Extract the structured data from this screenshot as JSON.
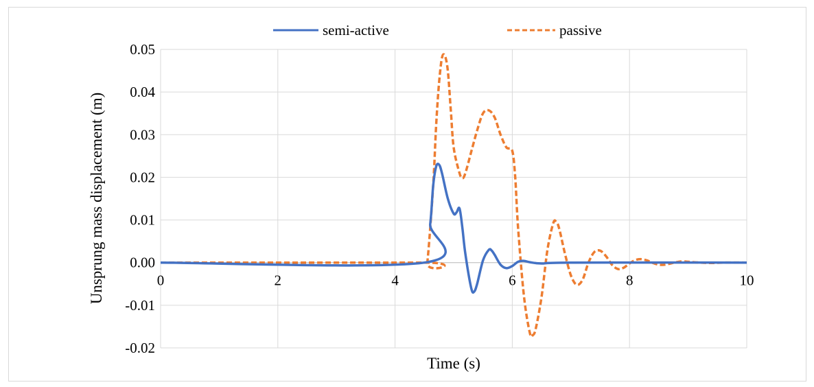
{
  "chart_data": {
    "type": "line",
    "title": "",
    "xlabel": "Time (s)",
    "ylabel": "Unsprung mass  displacement (m)",
    "xlim": [
      0,
      10
    ],
    "ylim": [
      -0.02,
      0.05
    ],
    "x_ticks": [
      0,
      2,
      4,
      6,
      8,
      10
    ],
    "y_ticks": [
      "0.05",
      "0.04",
      "0.03",
      "0.02",
      "0.01",
      "0.00",
      "-0.01",
      "-0.02"
    ],
    "y_tick_values": [
      0.05,
      0.04,
      0.03,
      0.02,
      0.01,
      0.0,
      -0.01,
      -0.02
    ],
    "grid": true,
    "legend_position": "top-center",
    "series": [
      {
        "name": "semi-active",
        "color": "#4472C4",
        "style": "solid",
        "x": [
          0,
          4.5,
          4.6,
          4.65,
          4.7,
          4.75,
          4.8,
          4.9,
          5.0,
          5.05,
          5.1,
          5.15,
          5.2,
          5.3,
          5.35,
          5.4,
          5.5,
          5.6,
          5.65,
          5.7,
          5.8,
          5.9,
          6.0,
          6.1,
          6.2,
          6.3,
          6.5,
          7.0,
          10
        ],
        "y": [
          0,
          0,
          0.009,
          0.018,
          0.0225,
          0.023,
          0.021,
          0.015,
          0.0115,
          0.0118,
          0.0127,
          0.008,
          0.002,
          -0.006,
          -0.0068,
          -0.005,
          0.0005,
          0.003,
          0.0028,
          0.0018,
          -0.0005,
          -0.0013,
          -0.0008,
          0.0002,
          0.0004,
          0.0001,
          -0.0002,
          0,
          0
        ]
      },
      {
        "name": "passive",
        "color": "#ED7D31",
        "style": "dashed",
        "x": [
          0,
          4.5,
          4.55,
          4.65,
          4.7,
          4.75,
          4.8,
          4.85,
          4.9,
          4.95,
          5.0,
          5.1,
          5.15,
          5.2,
          5.3,
          5.4,
          5.5,
          5.6,
          5.7,
          5.8,
          5.9,
          6.0,
          6.05,
          6.1,
          6.2,
          6.3,
          6.35,
          6.4,
          6.5,
          6.6,
          6.7,
          6.75,
          6.8,
          6.9,
          7.0,
          7.1,
          7.2,
          7.3,
          7.4,
          7.5,
          7.6,
          7.7,
          7.8,
          7.9,
          8.0,
          8.1,
          8.2,
          8.3,
          8.4,
          8.5,
          8.6,
          8.7,
          8.8,
          8.9,
          9.0,
          9.2,
          9.4,
          9.6,
          10
        ],
        "y": [
          0,
          0,
          0.0,
          0.018,
          0.032,
          0.042,
          0.048,
          0.0485,
          0.045,
          0.036,
          0.027,
          0.021,
          0.0198,
          0.021,
          0.026,
          0.031,
          0.035,
          0.0357,
          0.034,
          0.03,
          0.027,
          0.0262,
          0.02,
          0.008,
          -0.008,
          -0.0165,
          -0.017,
          -0.0155,
          -0.008,
          0.003,
          0.0093,
          0.0095,
          0.008,
          0.002,
          -0.003,
          -0.0052,
          -0.004,
          0.0,
          0.0025,
          0.0028,
          0.0015,
          -0.0005,
          -0.0015,
          -0.0012,
          -0.0002,
          0.0006,
          0.0008,
          0.0005,
          -0.0001,
          -0.0005,
          -0.0005,
          -0.0002,
          0.0001,
          0.0003,
          0.0002,
          0.0,
          -0.0001,
          0.0,
          0
        ]
      }
    ]
  }
}
